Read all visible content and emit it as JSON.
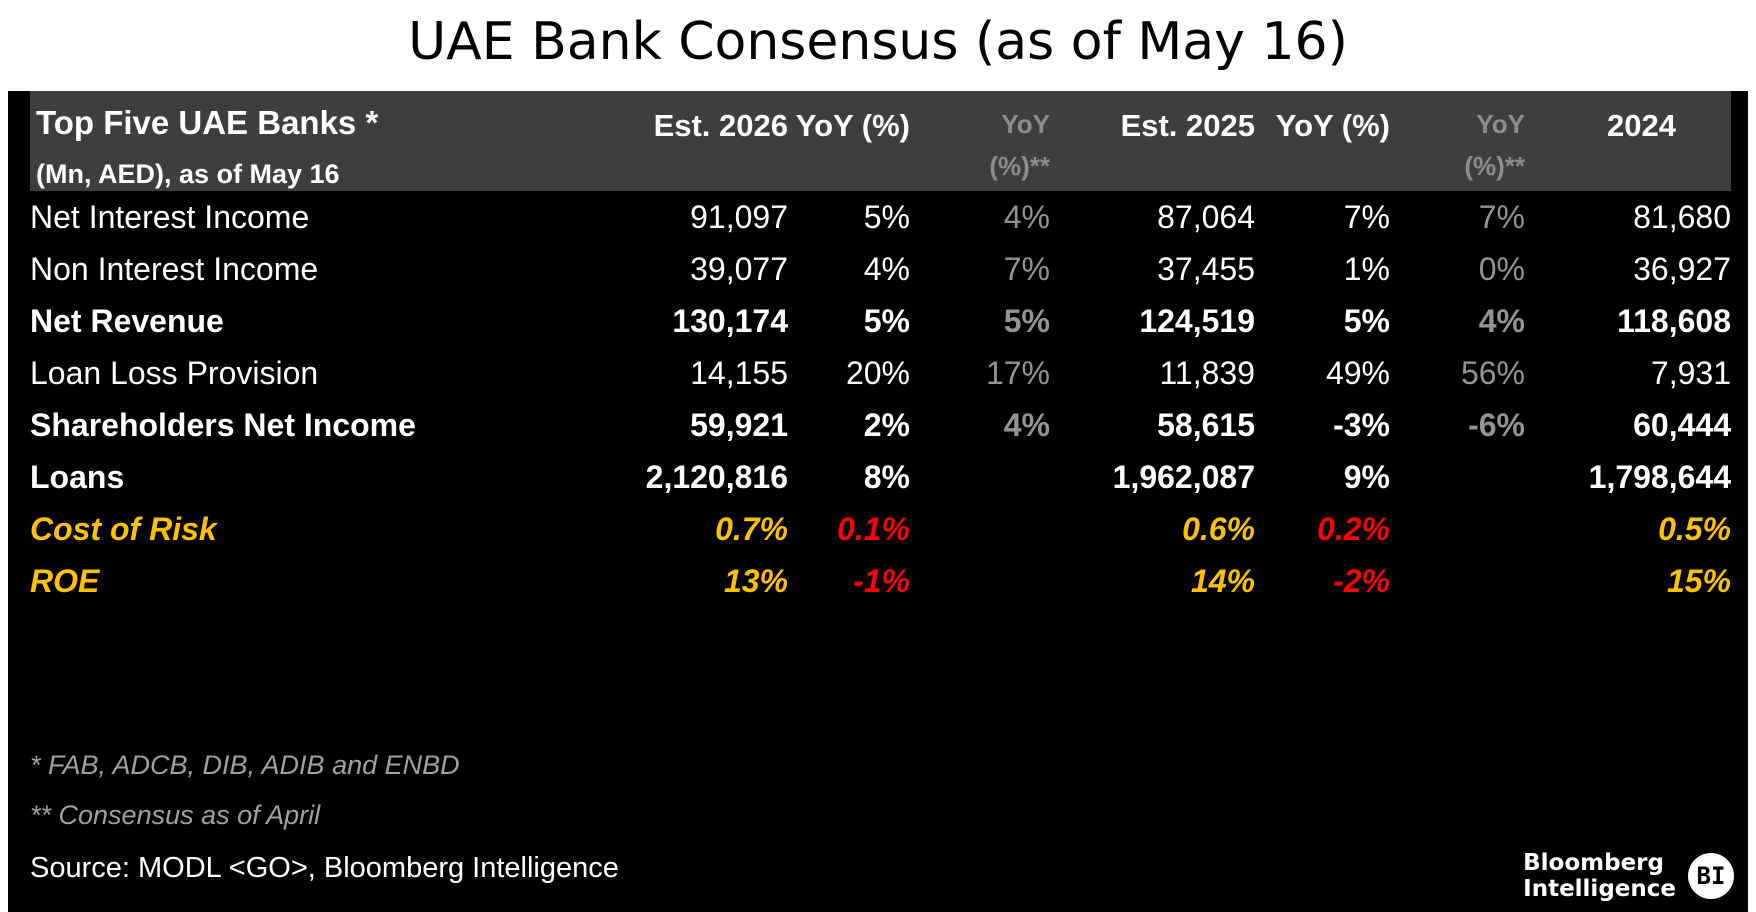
{
  "title": "UAE Bank Consensus (as of May 16)",
  "table": {
    "title": "Top Five UAE Banks *",
    "subtitle": "(Mn, AED), as of May 16",
    "columns": [
      {
        "label": "Est. 2026",
        "muted": false
      },
      {
        "label": "YoY (%)",
        "muted": false
      },
      {
        "label": "YoY (%)**",
        "muted": true
      },
      {
        "label": "Est. 2025",
        "muted": false
      },
      {
        "label": "YoY (%)",
        "muted": false
      },
      {
        "label": "YoY (%)**",
        "muted": true
      },
      {
        "label": "2024",
        "muted": false
      }
    ],
    "rows": [
      {
        "label": "Net Interest Income",
        "bold": false,
        "accent": false,
        "values": [
          "91,097",
          "5%",
          "4%",
          "87,064",
          "7%",
          "7%",
          "81,680"
        ]
      },
      {
        "label": "Non Interest Income",
        "bold": false,
        "accent": false,
        "values": [
          "39,077",
          "4%",
          "7%",
          "37,455",
          "1%",
          "0%",
          "36,927"
        ]
      },
      {
        "label": "Net Revenue",
        "bold": true,
        "accent": false,
        "values": [
          "130,174",
          "5%",
          "5%",
          "124,519",
          "5%",
          "4%",
          "118,608"
        ]
      },
      {
        "label": "Loan Loss Provision",
        "bold": false,
        "accent": false,
        "values": [
          "14,155",
          "20%",
          "17%",
          "11,839",
          "49%",
          "56%",
          "7,931"
        ]
      },
      {
        "label": "Shareholders Net Income",
        "bold": true,
        "accent": false,
        "values": [
          "59,921",
          "2%",
          "4%",
          "58,615",
          "-3%",
          "-6%",
          "60,444"
        ]
      },
      {
        "label": "Loans",
        "bold": true,
        "accent": false,
        "values": [
          "2,120,816",
          "8%",
          "",
          "1,962,087",
          "9%",
          "",
          "1,798,644"
        ]
      },
      {
        "label": "Cost of Risk",
        "bold": true,
        "accent": true,
        "values": [
          "0.7%",
          "0.1%",
          "",
          "0.6%",
          "0.2%",
          "",
          "0.5%"
        ]
      },
      {
        "label": "ROE",
        "bold": true,
        "accent": true,
        "values": [
          "13%",
          "-1%",
          "",
          "14%",
          "-2%",
          "",
          "15%"
        ]
      }
    ],
    "footnotes": [
      "* FAB, ADCB, DIB, ADIB and ENBD",
      "** Consensus as of April"
    ],
    "source": "Source: MODL <GO>, Bloomberg Intelligence"
  },
  "logo": {
    "line1": "Bloomberg",
    "line2": "Intelligence",
    "badge": "BI"
  },
  "colors": {
    "accent_yellow": "#FFC000",
    "negative_red": "#FF0000",
    "muted_gray": "#949494",
    "header_band": "#3E3E3E",
    "table_background": "#000000",
    "page_background": "#FFFFFF"
  },
  "chart_data": {
    "type": "table",
    "title": "UAE Bank Consensus (as of May 16)",
    "columns": [
      "Top Five UAE Banks * (Mn, AED), as of May 16",
      "Est. 2026",
      "YoY (%)",
      "YoY (%)**",
      "Est. 2025",
      "YoY (%)",
      "YoY (%)**",
      "2024"
    ],
    "rows": [
      [
        "Net Interest Income",
        "91,097",
        "5%",
        "4%",
        "87,064",
        "7%",
        "7%",
        "81,680"
      ],
      [
        "Non Interest Income",
        "39,077",
        "4%",
        "7%",
        "37,455",
        "1%",
        "0%",
        "36,927"
      ],
      [
        "Net Revenue",
        "130,174",
        "5%",
        "5%",
        "124,519",
        "5%",
        "4%",
        "118,608"
      ],
      [
        "Loan Loss Provision",
        "14,155",
        "20%",
        "17%",
        "11,839",
        "49%",
        "56%",
        "7,931"
      ],
      [
        "Shareholders Net Income",
        "59,921",
        "2%",
        "4%",
        "58,615",
        "-3%",
        "-6%",
        "60,444"
      ],
      [
        "Loans",
        "2,120,816",
        "8%",
        "",
        "1,962,087",
        "9%",
        "",
        "1,798,644"
      ],
      [
        "Cost of Risk",
        "0.7%",
        "0.1%",
        "",
        "0.6%",
        "0.2%",
        "",
        "0.5%"
      ],
      [
        "ROE",
        "13%",
        "-1%",
        "",
        "14%",
        "-2%",
        "",
        "15%"
      ]
    ],
    "footnotes": [
      "* FAB, ADCB, DIB, ADIB and ENBD",
      "** Consensus as of April"
    ],
    "source": "Source: MODL <GO>, Bloomberg Intelligence"
  }
}
